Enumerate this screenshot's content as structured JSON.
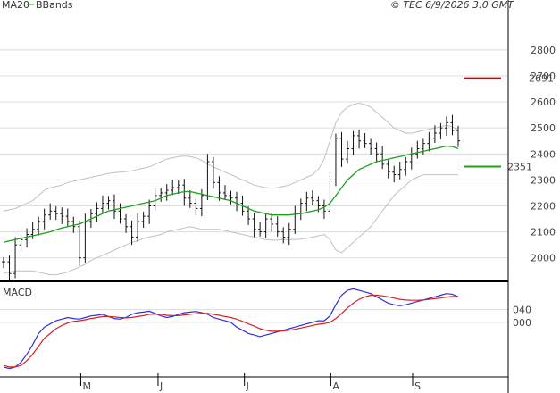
{
  "header": {
    "legend_ma20": "MA20",
    "legend_bbands": "BBands",
    "timestamp": "© TEC 6/9/2026 3:0 GMT"
  },
  "panels": {
    "macd_title": "MACD"
  },
  "colors": {
    "ma20": "#1f9e1f",
    "bbands": "#c0c0c0",
    "price": "#111111",
    "resistance": "#cc0000",
    "support": "#1f9e1f",
    "macd": "#2f2fd8",
    "signal": "#d82020",
    "grid": "#dcdcdc"
  },
  "chart_data": [
    {
      "type": "ohlc",
      "panel": "price",
      "yticks": [
        2000,
        2100,
        2200,
        2300,
        2400,
        2500,
        2600,
        2700,
        2800
      ],
      "ytick_labels": [
        "2000",
        "2100",
        "2200",
        "2300",
        "2400",
        "2500",
        "2600",
        "2700",
        "2800"
      ],
      "ylim": [
        1920,
        2930
      ],
      "xlim": [
        0,
        100
      ],
      "month_labels": [
        {
          "label": "M",
          "x": 16
        },
        {
          "label": "J",
          "x": 33
        },
        {
          "label": "J",
          "x": 52
        },
        {
          "label": "A",
          "x": 71
        },
        {
          "label": "S",
          "x": 89
        }
      ],
      "levels": [
        {
          "name": "resistance",
          "value": 2691,
          "label": "2691"
        },
        {
          "name": "support",
          "value": 2351,
          "label": "2351"
        }
      ],
      "price": [
        1985,
        1940,
        2050,
        2070,
        2090,
        2110,
        2140,
        2165,
        2180,
        2170,
        2160,
        2140,
        2120,
        2000,
        2140,
        2170,
        2190,
        2210,
        2220,
        2180,
        2150,
        2120,
        2080,
        2140,
        2160,
        2200,
        2240,
        2250,
        2260,
        2270,
        2280,
        2230,
        2210,
        2190,
        2240,
        2370,
        2290,
        2250,
        2240,
        2230,
        2210,
        2180,
        2150,
        2110,
        2100,
        2150,
        2130,
        2100,
        2080,
        2110,
        2170,
        2210,
        2230,
        2220,
        2200,
        2180,
        2300,
        2460,
        2380,
        2420,
        2470,
        2450,
        2440,
        2420,
        2400,
        2360,
        2330,
        2320,
        2340,
        2370,
        2400,
        2420,
        2440,
        2460,
        2480,
        2500,
        2520,
        2490,
        2450
      ],
      "ma20": [
        2060,
        2065,
        2070,
        2075,
        2080,
        2085,
        2090,
        2095,
        2100,
        2108,
        2115,
        2120,
        2125,
        2130,
        2140,
        2150,
        2160,
        2170,
        2180,
        2185,
        2190,
        2195,
        2200,
        2205,
        2210,
        2215,
        2220,
        2230,
        2240,
        2245,
        2250,
        2255,
        2255,
        2250,
        2245,
        2240,
        2235,
        2230,
        2225,
        2220,
        2210,
        2200,
        2190,
        2180,
        2175,
        2170,
        2165,
        2165,
        2165,
        2165,
        2168,
        2170,
        2175,
        2180,
        2185,
        2195,
        2210,
        2240,
        2270,
        2300,
        2320,
        2340,
        2350,
        2360,
        2370,
        2375,
        2380,
        2385,
        2390,
        2395,
        2400,
        2405,
        2410,
        2415,
        2420,
        2425,
        2430,
        2428,
        2420
      ],
      "bb_upper": [
        2180,
        2185,
        2190,
        2200,
        2210,
        2220,
        2240,
        2260,
        2270,
        2275,
        2280,
        2290,
        2295,
        2300,
        2305,
        2310,
        2315,
        2320,
        2325,
        2328,
        2330,
        2332,
        2335,
        2340,
        2345,
        2350,
        2360,
        2370,
        2380,
        2385,
        2390,
        2392,
        2390,
        2385,
        2375,
        2360,
        2350,
        2340,
        2330,
        2320,
        2310,
        2300,
        2290,
        2280,
        2275,
        2270,
        2268,
        2270,
        2275,
        2280,
        2290,
        2300,
        2310,
        2320,
        2340,
        2380,
        2450,
        2520,
        2560,
        2580,
        2590,
        2595,
        2590,
        2580,
        2560,
        2540,
        2520,
        2500,
        2490,
        2480,
        2480,
        2485,
        2490,
        2495,
        2500,
        2505,
        2510,
        2505,
        2490
      ],
      "bb_lower": [
        1940,
        1945,
        1950,
        1950,
        1950,
        1950,
        1945,
        1940,
        1935,
        1935,
        1940,
        1945,
        1955,
        1965,
        1975,
        1990,
        2000,
        2010,
        2020,
        2030,
        2040,
        2050,
        2060,
        2065,
        2075,
        2080,
        2085,
        2090,
        2100,
        2105,
        2110,
        2115,
        2120,
        2115,
        2110,
        2110,
        2110,
        2110,
        2105,
        2100,
        2095,
        2090,
        2085,
        2080,
        2075,
        2070,
        2068,
        2068,
        2070,
        2070,
        2070,
        2072,
        2075,
        2080,
        2085,
        2090,
        2070,
        2030,
        2020,
        2040,
        2060,
        2080,
        2100,
        2120,
        2150,
        2180,
        2210,
        2240,
        2260,
        2280,
        2300,
        2310,
        2320,
        2320,
        2320,
        2320,
        2320,
        2320,
        2320
      ]
    },
    {
      "type": "line",
      "panel": "macd",
      "title": "MACD",
      "yticks": [
        40,
        0
      ],
      "ytick_labels": [
        "040",
        "000"
      ],
      "ylim": [
        -160,
        120
      ],
      "series": [
        {
          "name": "MACD",
          "values": [
            -140,
            -145,
            -140,
            -125,
            -100,
            -70,
            -35,
            -15,
            -5,
            5,
            10,
            15,
            12,
            10,
            15,
            20,
            22,
            25,
            18,
            12,
            10,
            15,
            25,
            30,
            32,
            35,
            28,
            20,
            15,
            18,
            25,
            30,
            32,
            34,
            30,
            25,
            15,
            10,
            5,
            0,
            -15,
            -25,
            -35,
            -40,
            -45,
            -40,
            -35,
            -30,
            -25,
            -20,
            -15,
            -10,
            -5,
            0,
            5,
            5,
            20,
            55,
            85,
            100,
            105,
            100,
            95,
            90,
            80,
            70,
            60,
            55,
            52,
            55,
            60,
            65,
            70,
            75,
            80,
            85,
            90,
            88,
            80
          ]
        },
        {
          "name": "Signal",
          "values": [
            -135,
            -140,
            -140,
            -135,
            -120,
            -100,
            -75,
            -50,
            -35,
            -20,
            -10,
            -2,
            3,
            5,
            8,
            12,
            15,
            18,
            18,
            17,
            15,
            14,
            15,
            18,
            21,
            25,
            26,
            25,
            22,
            21,
            21,
            23,
            25,
            27,
            28,
            28,
            25,
            22,
            18,
            15,
            10,
            3,
            -5,
            -12,
            -20,
            -25,
            -28,
            -28,
            -27,
            -25,
            -22,
            -18,
            -14,
            -10,
            -6,
            -4,
            0,
            12,
            28,
            45,
            60,
            72,
            80,
            85,
            85,
            83,
            80,
            76,
            72,
            70,
            69,
            69,
            70,
            72,
            74,
            76,
            79,
            81,
            80
          ]
        }
      ]
    }
  ]
}
